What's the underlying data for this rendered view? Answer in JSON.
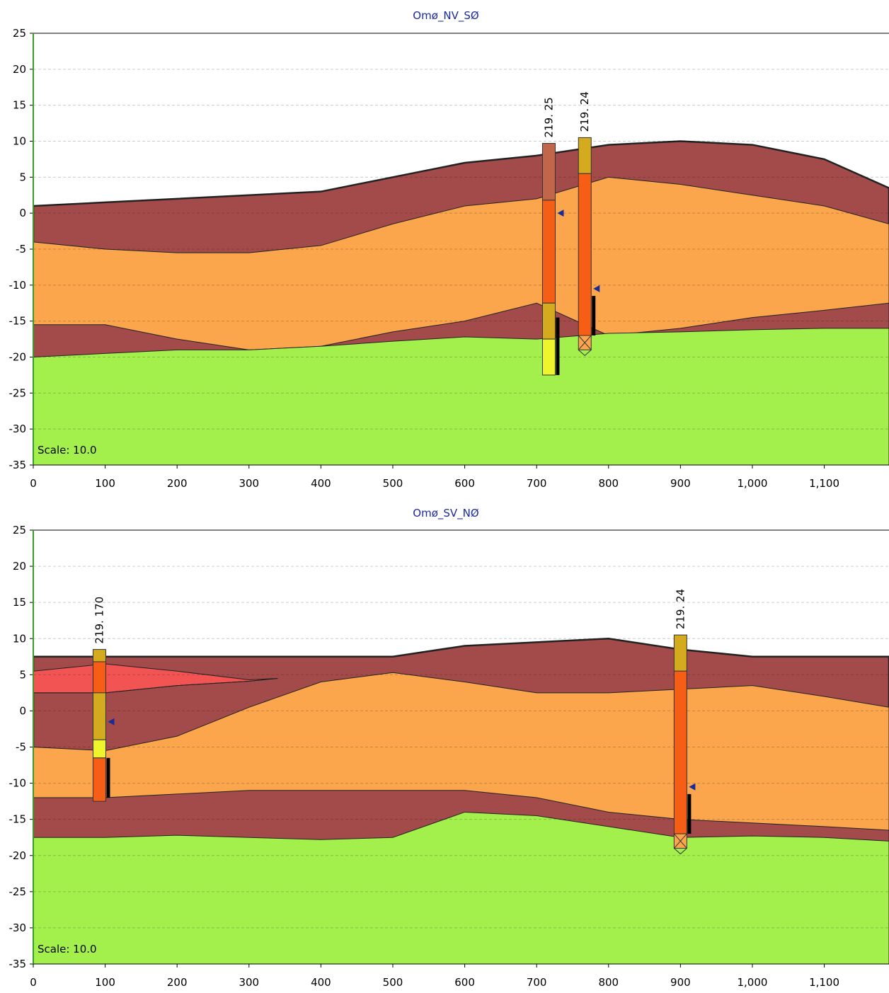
{
  "chart_data": [
    {
      "type": "cross-section",
      "title": "Omø_NV_SØ",
      "scale_label": "Scale: 10.0",
      "xlim": [
        0,
        1190
      ],
      "xticks": [
        0,
        100,
        200,
        300,
        400,
        500,
        600,
        700,
        800,
        900,
        {
          "value": 1000,
          "label": "1,000"
        },
        {
          "value": 1100,
          "label": "1,100"
        }
      ],
      "ylim": [
        -35,
        25
      ],
      "yticks": [
        25,
        20,
        15,
        10,
        5,
        0,
        -5,
        -10,
        -15,
        -20,
        -25,
        -30,
        -35
      ],
      "grid": true,
      "layers": [
        {
          "color": "#a34b4b",
          "x": [
            0,
            100,
            200,
            300,
            400,
            500,
            600,
            700,
            800,
            900,
            1000,
            1100,
            1190
          ],
          "top": [
            1,
            1.5,
            2,
            2.5,
            3,
            5,
            7,
            8,
            9.5,
            10,
            9.5,
            7.5,
            3.5
          ]
        },
        {
          "color": "#fba54c",
          "x": [
            0,
            100,
            200,
            300,
            400,
            500,
            600,
            700,
            800,
            900,
            1000,
            1100,
            1190
          ],
          "top": [
            -4,
            -5,
            -5.5,
            -5.5,
            -4.5,
            -1.5,
            1,
            2,
            5,
            4,
            2.5,
            1,
            -1.5
          ]
        },
        {
          "color": "#a34b4b",
          "x": [
            0,
            100,
            200,
            300,
            400,
            500,
            600,
            700,
            800,
            900,
            1000,
            1100,
            1190
          ],
          "top": [
            -15.5,
            -15.5,
            -17.5,
            -19,
            -18.5,
            -16.5,
            -15,
            -12.5,
            -17,
            -16,
            -14.5,
            -13.5,
            -12.5
          ]
        },
        {
          "color": "#a3f04c",
          "x": [
            0,
            100,
            200,
            300,
            400,
            500,
            600,
            700,
            800,
            900,
            1000,
            1100,
            1190
          ],
          "top": [
            -20,
            -19.5,
            -19,
            -19,
            -18.5,
            -17.8,
            -17.2,
            -17.5,
            -16.7,
            -16.5,
            -16.2,
            -16,
            -16
          ]
        }
      ],
      "boreholes": [
        {
          "label": "219. 25",
          "x": 717,
          "water": 0,
          "screen": [
            -14.5,
            -22.5
          ],
          "segments": [
            {
              "top": 9.7,
              "bottom": 1.8,
              "color": "#c1664a"
            },
            {
              "top": 1.8,
              "bottom": -12.5,
              "color": "#f65e16"
            },
            {
              "top": -12.5,
              "bottom": -17.5,
              "color": "#d4ab1e"
            },
            {
              "top": -17.5,
              "bottom": -22.5,
              "color": "#eef52c"
            }
          ]
        },
        {
          "label": "219. 24",
          "x": 767,
          "water": -10.5,
          "screen": [
            -11.5,
            -17
          ],
          "segments": [
            {
              "top": 10.5,
              "bottom": 5.5,
              "color": "#d4ab1e"
            },
            {
              "top": 5.5,
              "bottom": -17,
              "color": "#f65e16"
            },
            {
              "top": -17,
              "bottom": -19,
              "color": "#fba54c",
              "hatch": true
            }
          ]
        }
      ]
    },
    {
      "type": "cross-section",
      "title": "Omø_SV_NØ",
      "scale_label": "Scale: 10.0",
      "xlim": [
        0,
        1190
      ],
      "xticks": [
        0,
        100,
        200,
        300,
        400,
        500,
        600,
        700,
        800,
        900,
        {
          "value": 1000,
          "label": "1,000"
        },
        {
          "value": 1100,
          "label": "1,100"
        }
      ],
      "ylim": [
        -35,
        25
      ],
      "yticks": [
        25,
        20,
        15,
        10,
        5,
        0,
        -5,
        -10,
        -15,
        -20,
        -25,
        -30,
        -35
      ],
      "grid": true,
      "layers": [
        {
          "color": "#a34b4b",
          "x": [
            0,
            100,
            200,
            300,
            400,
            500,
            600,
            700,
            800,
            900,
            1000,
            1100,
            1190
          ],
          "top": [
            7.5,
            7.5,
            7.5,
            7.5,
            7.5,
            7.5,
            9,
            9.5,
            10,
            8.5,
            7.5,
            7.5,
            7.5
          ]
        },
        {
          "color": "#f25353",
          "x": [
            0,
            100,
            200,
            300,
            340
          ],
          "top": [
            5.5,
            6.5,
            5.5,
            4.3,
            4.5
          ],
          "bottom": [
            2.5,
            2.5,
            3.5,
            4.1,
            4.5
          ]
        },
        {
          "color": "#fba54c",
          "x": [
            0,
            100,
            200,
            300,
            400,
            500,
            600,
            700,
            800,
            900,
            1000,
            1100,
            1190
          ],
          "top": [
            -5,
            -5.5,
            -3.5,
            0.5,
            4,
            5.3,
            4,
            2.5,
            2.5,
            3,
            3.5,
            2,
            0.5
          ]
        },
        {
          "color": "#a34b4b",
          "x": [
            0,
            100,
            200,
            300,
            400,
            500,
            600,
            700,
            800,
            900,
            1000,
            1100,
            1190
          ],
          "top": [
            -12,
            -12,
            -11.5,
            -11,
            -11,
            -11,
            -11,
            -12,
            -14,
            -15,
            -15.5,
            -16,
            -16.5
          ]
        },
        {
          "color": "#a3f04c",
          "x": [
            0,
            100,
            200,
            300,
            400,
            500,
            600,
            700,
            800,
            900,
            1000,
            1100,
            1190
          ],
          "top": [
            -17.5,
            -17.5,
            -17.2,
            -17.5,
            -17.8,
            -17.5,
            -14,
            -14.5,
            -16,
            -17.5,
            -17.3,
            -17.5,
            -18
          ]
        }
      ],
      "boreholes": [
        {
          "label": "219. 170",
          "x": 92,
          "water": -1.5,
          "screen": [
            -6.5,
            -12
          ],
          "segments": [
            {
              "top": 8.5,
              "bottom": 6.8,
              "color": "#d4ab1e"
            },
            {
              "top": 6.8,
              "bottom": 2.5,
              "color": "#f65e16"
            },
            {
              "top": 2.5,
              "bottom": -4,
              "color": "#d4ab1e"
            },
            {
              "top": -4,
              "bottom": -6.5,
              "color": "#eef52c"
            },
            {
              "top": -6.5,
              "bottom": -12.5,
              "color": "#f65e16"
            }
          ]
        },
        {
          "label": "219. 24",
          "x": 900,
          "water": -10.5,
          "screen": [
            -11.5,
            -17
          ],
          "segments": [
            {
              "top": 10.5,
              "bottom": 5.5,
              "color": "#d4ab1e"
            },
            {
              "top": 5.5,
              "bottom": -17,
              "color": "#f65e16"
            },
            {
              "top": -17,
              "bottom": -19,
              "color": "#fba54c",
              "hatch": true
            }
          ]
        }
      ]
    }
  ]
}
